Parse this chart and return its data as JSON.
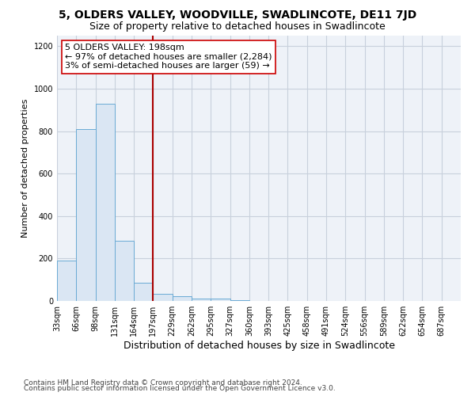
{
  "title": "5, OLDERS VALLEY, WOODVILLE, SWADLINCOTE, DE11 7JD",
  "subtitle": "Size of property relative to detached houses in Swadlincote",
  "xlabel": "Distribution of detached houses by size in Swadlincote",
  "ylabel": "Number of detached properties",
  "bar_color": "#dae6f3",
  "bar_edgecolor": "#6aaad4",
  "annotation_line1": "5 OLDERS VALLEY: 198sqm",
  "annotation_line2": "← 97% of detached houses are smaller (2,284)",
  "annotation_line3": "3% of semi-detached houses are larger (59) →",
  "vline_color": "#aa0000",
  "categories": [
    "33sqm",
    "66sqm",
    "98sqm",
    "131sqm",
    "164sqm",
    "197sqm",
    "229sqm",
    "262sqm",
    "295sqm",
    "327sqm",
    "360sqm",
    "393sqm",
    "425sqm",
    "458sqm",
    "491sqm",
    "524sqm",
    "556sqm",
    "589sqm",
    "622sqm",
    "654sqm",
    "687sqm"
  ],
  "bin_starts": [
    0,
    1,
    2,
    3,
    4,
    5,
    6,
    7,
    8,
    9,
    10,
    11,
    12,
    13,
    14,
    15,
    16,
    17,
    18,
    19,
    20
  ],
  "values": [
    190,
    810,
    930,
    285,
    85,
    35,
    22,
    12,
    10,
    5,
    0,
    0,
    0,
    0,
    0,
    0,
    0,
    0,
    0,
    0,
    0
  ],
  "vline_bin": 5,
  "ylim": [
    0,
    1250
  ],
  "yticks": [
    0,
    200,
    400,
    600,
    800,
    1000,
    1200
  ],
  "footnote1": "Contains HM Land Registry data © Crown copyright and database right 2024.",
  "footnote2": "Contains public sector information licensed under the Open Government Licence v3.0.",
  "title_fontsize": 10,
  "subtitle_fontsize": 9,
  "annotation_fontsize": 8,
  "tick_fontsize": 7,
  "ylabel_fontsize": 8,
  "xlabel_fontsize": 9,
  "footnote_fontsize": 6.5,
  "background_color": "#ffffff",
  "plot_bg_color": "#eef2f8",
  "grid_color": "#c8d0dc"
}
